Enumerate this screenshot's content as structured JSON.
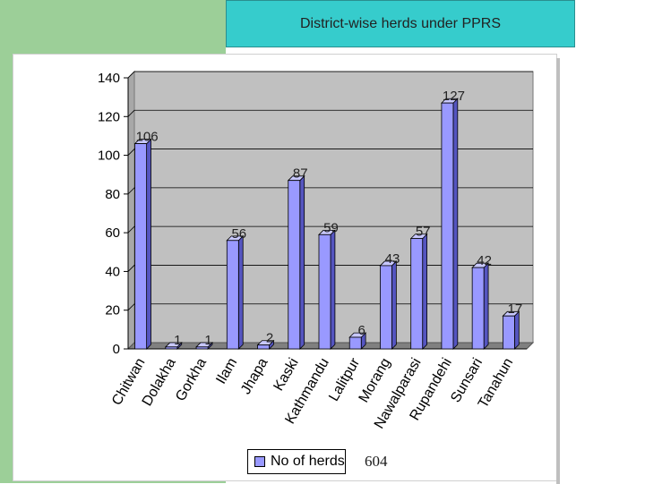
{
  "header": {
    "title": "District-wise herds under PPRS"
  },
  "footer": {
    "total": "604"
  },
  "chart_data": {
    "type": "bar",
    "title": "",
    "xlabel": "",
    "ylabel": "",
    "ylim": [
      0,
      140
    ],
    "yticks": [
      0,
      20,
      40,
      60,
      80,
      100,
      120,
      140
    ],
    "yticklabels": [
      "0",
      "20",
      "40",
      "60",
      "80",
      "100",
      "120",
      "140"
    ],
    "grid": true,
    "legend_position": "bottom",
    "categories": [
      "Chitwan",
      "Dolakha",
      "Gorkha",
      "Ilam",
      "Jhapa",
      "Kaski",
      "Kathmandu",
      "Lalitpur",
      "Morang",
      "Nawalparasi",
      "Rupandehi",
      "Sunsari",
      "Tanahun"
    ],
    "series": [
      {
        "name": "No of herds",
        "values": [
          106,
          1,
          1,
          56,
          2,
          87,
          59,
          6,
          43,
          57,
          127,
          42,
          17
        ],
        "labels": [
          "106",
          "1",
          "1",
          "56",
          "2",
          "87",
          "59",
          "6",
          "43",
          "57",
          "127",
          "42",
          "17"
        ]
      }
    ],
    "colors": {
      "bar_front": "#9999ff",
      "bar_side": "#5555c0",
      "bar_top": "#c8c8ff",
      "plot_back": "#c0c0c0",
      "floor": "#808080"
    }
  }
}
